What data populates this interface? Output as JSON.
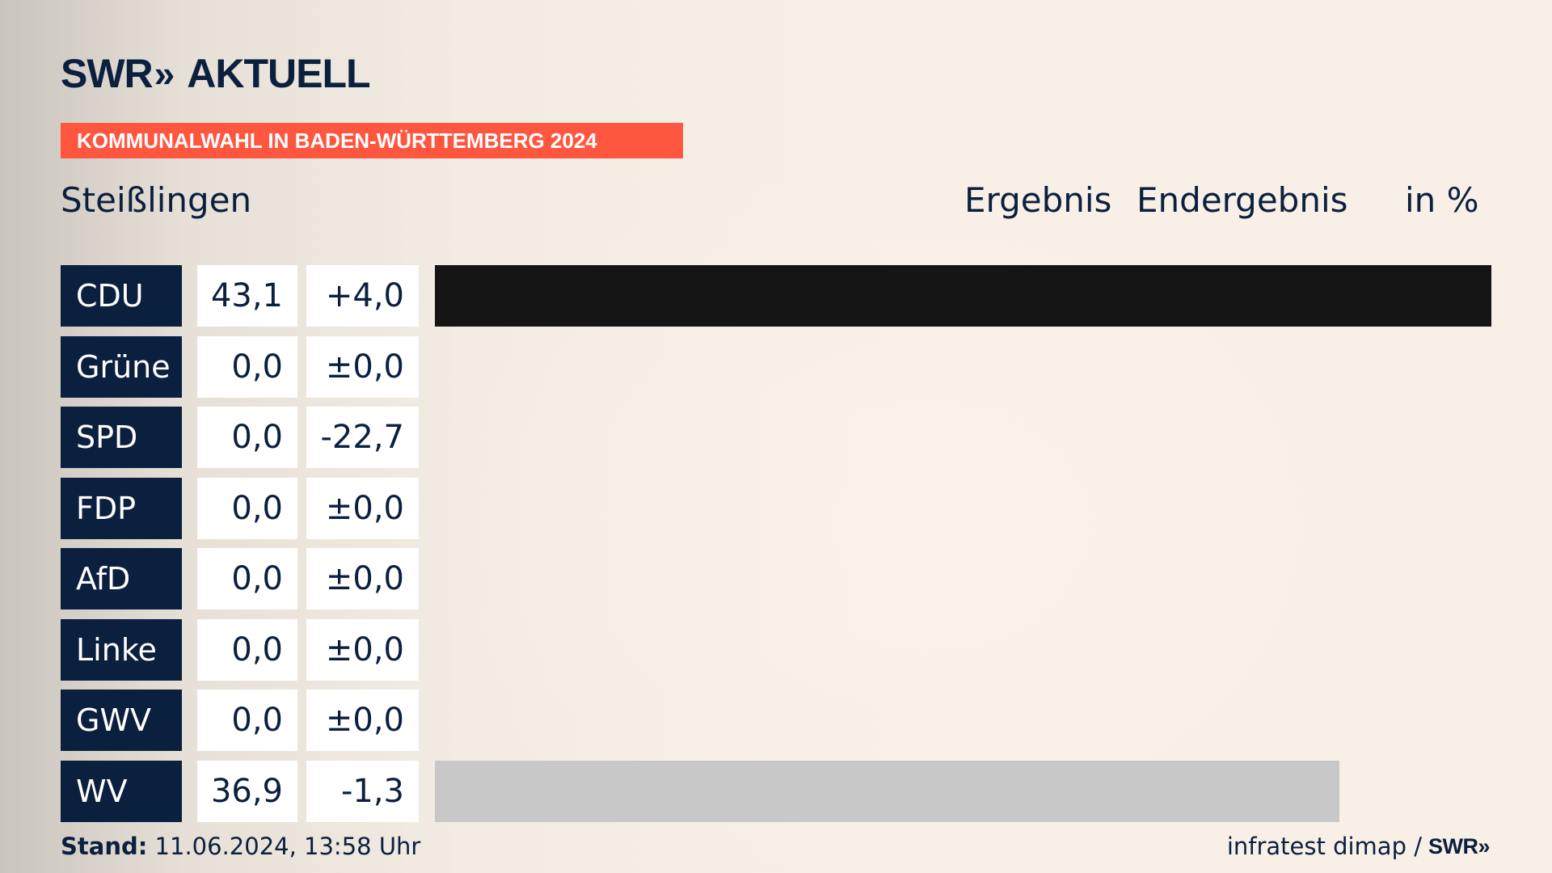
{
  "brand": {
    "logo_swr": "SWR",
    "logo_chevrons": "»",
    "logo_aktuell": "AKTUELL"
  },
  "banner": "KOMMUNALWAHL IN BADEN-WÜRTTEMBERG 2024",
  "header": {
    "region": "Steißlingen",
    "result_label": "Ergebnis",
    "status_label": "Endergebnis",
    "unit_label": "in %"
  },
  "colors": {
    "navy": "#0b1f3f",
    "banner_red": "#ff5640",
    "cdu": "#151515",
    "wv": "#c8c8c8"
  },
  "chart_data": {
    "type": "bar",
    "orientation": "horizontal",
    "unit": "%",
    "max_value": 43.1,
    "categories": [
      "CDU",
      "Grüne",
      "SPD",
      "FDP",
      "AfD",
      "Linke",
      "GWV",
      "WV"
    ],
    "values": [
      43.1,
      0.0,
      0.0,
      0.0,
      0.0,
      0.0,
      0.0,
      36.9
    ],
    "rows": [
      {
        "party": "CDU",
        "value": "43,1",
        "diff": "+4,0",
        "pct": 43.1,
        "color": "#151515"
      },
      {
        "party": "Grüne",
        "value": "0,0",
        "diff": "±0,0",
        "pct": 0.0,
        "color": "#46962b"
      },
      {
        "party": "SPD",
        "value": "0,0",
        "diff": "-22,7",
        "pct": 0.0,
        "color": "#e3000f"
      },
      {
        "party": "FDP",
        "value": "0,0",
        "diff": "±0,0",
        "pct": 0.0,
        "color": "#ffed00"
      },
      {
        "party": "AfD",
        "value": "0,0",
        "diff": "±0,0",
        "pct": 0.0,
        "color": "#009ee0"
      },
      {
        "party": "Linke",
        "value": "0,0",
        "diff": "±0,0",
        "pct": 0.0,
        "color": "#be3075"
      },
      {
        "party": "GWV",
        "value": "0,0",
        "diff": "±0,0",
        "pct": 0.0,
        "color": "#9a9a9a"
      },
      {
        "party": "WV",
        "value": "36,9",
        "diff": "-1,3",
        "pct": 36.9,
        "color": "#c8c8c8"
      }
    ]
  },
  "footer": {
    "stand_label": "Stand:",
    "stand_value": "11.06.2024, 13:58 Uhr",
    "source": "infratest dimap /",
    "source_logo": "SWR»"
  }
}
